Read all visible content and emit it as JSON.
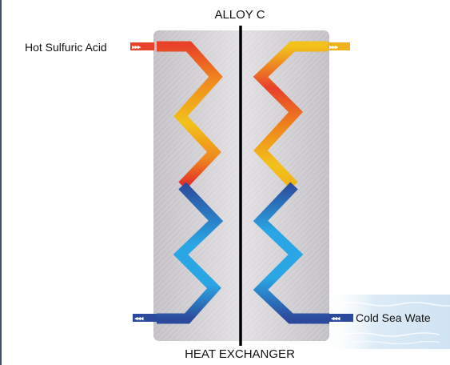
{
  "diagram": {
    "title_top": "ALLOY C",
    "title_bottom": "HEAT EXCHANGER",
    "hot_inlet_label": "Hot Sulfuric Acid",
    "cold_inlet_label": "Cold Sea Wate"
  },
  "colors": {
    "panel": "#d4d1d6",
    "divider": "#000000",
    "hot_red": "#e8322a",
    "hot_orange": "#ef8a1c",
    "hot_yellow": "#f2c21a",
    "cold_dark_blue": "#2c4a9c",
    "cold_light_blue": "#2aa6e4",
    "water": "#dcebf6"
  }
}
